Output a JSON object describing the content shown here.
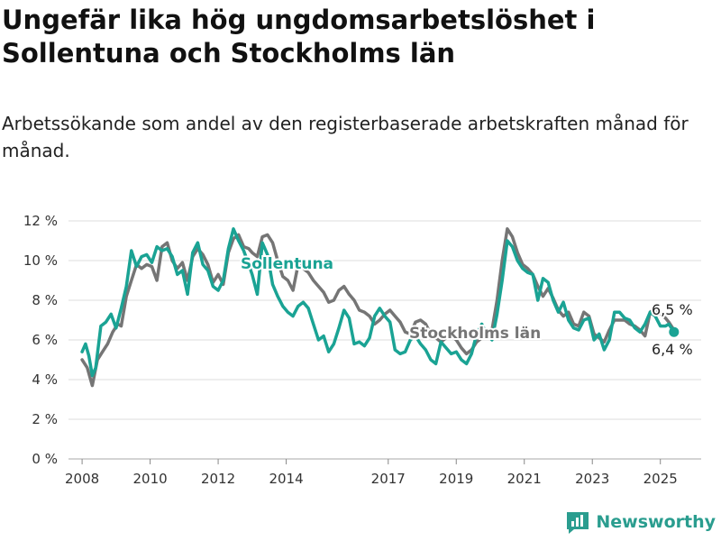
{
  "title": "Ungefär lika hög ungdomsarbetslöshet i Sollentuna och Stockholms län",
  "subtitle": "Arbetssökande som andel av den registerbaserade arbetskraften månad för månad.",
  "brand": "Newsworthy",
  "colors": {
    "sollentuna": "#1aa394",
    "stockholm": "#757575",
    "grid": "#dddddd"
  },
  "chart_data": {
    "type": "line",
    "xlim": [
      2007.6,
      2026.2
    ],
    "ylim": [
      0,
      12
    ],
    "grid": true,
    "y_ticks": [
      {
        "value": 0,
        "label": "0 %"
      },
      {
        "value": 2,
        "label": "2 %"
      },
      {
        "value": 4,
        "label": "4 %"
      },
      {
        "value": 6,
        "label": "6 %"
      },
      {
        "value": 8,
        "label": "8 %"
      },
      {
        "value": 10,
        "label": "10 %"
      },
      {
        "value": 12,
        "label": "12 %"
      }
    ],
    "x_ticks": [
      {
        "value": 2008,
        "label": "2008"
      },
      {
        "value": 2010,
        "label": "2010"
      },
      {
        "value": 2012,
        "label": "2012"
      },
      {
        "value": 2014,
        "label": "2014"
      },
      {
        "value": 2017,
        "label": "2017"
      },
      {
        "value": 2019,
        "label": "2019"
      },
      {
        "value": 2021,
        "label": "2021"
      },
      {
        "value": 2023,
        "label": "2023"
      },
      {
        "value": 2025,
        "label": "2025"
      }
    ],
    "series": [
      {
        "name": "Stockholms län",
        "key": "stockholm",
        "end_label": "6,5 %",
        "points": [
          [
            2008.0,
            5.0
          ],
          [
            2008.15,
            4.6
          ],
          [
            2008.3,
            3.7
          ],
          [
            2008.45,
            5.0
          ],
          [
            2008.6,
            5.4
          ],
          [
            2008.75,
            5.8
          ],
          [
            2008.9,
            6.4
          ],
          [
            2009.05,
            6.8
          ],
          [
            2009.15,
            6.7
          ],
          [
            2009.3,
            8.2
          ],
          [
            2009.45,
            9.0
          ],
          [
            2009.6,
            9.8
          ],
          [
            2009.75,
            9.6
          ],
          [
            2009.9,
            9.8
          ],
          [
            2010.05,
            9.7
          ],
          [
            2010.2,
            9.0
          ],
          [
            2010.35,
            10.7
          ],
          [
            2010.5,
            10.9
          ],
          [
            2010.65,
            10.0
          ],
          [
            2010.8,
            9.6
          ],
          [
            2010.95,
            9.9
          ],
          [
            2011.1,
            9.0
          ],
          [
            2011.25,
            10.2
          ],
          [
            2011.4,
            10.6
          ],
          [
            2011.55,
            10.3
          ],
          [
            2011.7,
            9.8
          ],
          [
            2011.85,
            8.9
          ],
          [
            2012.0,
            9.3
          ],
          [
            2012.15,
            8.8
          ],
          [
            2012.3,
            10.4
          ],
          [
            2012.45,
            11.1
          ],
          [
            2012.6,
            11.3
          ],
          [
            2012.75,
            10.7
          ],
          [
            2012.9,
            10.6
          ],
          [
            2013.0,
            10.4
          ],
          [
            2013.15,
            10.2
          ],
          [
            2013.3,
            11.2
          ],
          [
            2013.45,
            11.3
          ],
          [
            2013.6,
            10.9
          ],
          [
            2013.75,
            10.0
          ],
          [
            2013.9,
            9.2
          ],
          [
            2014.05,
            9.0
          ],
          [
            2014.2,
            8.5
          ],
          [
            2014.35,
            9.8
          ],
          [
            2014.5,
            9.6
          ],
          [
            2014.65,
            9.4
          ],
          [
            2014.8,
            9.0
          ],
          [
            2014.95,
            8.7
          ],
          [
            2015.1,
            8.4
          ],
          [
            2015.25,
            7.9
          ],
          [
            2015.4,
            8.0
          ],
          [
            2015.55,
            8.5
          ],
          [
            2015.7,
            8.7
          ],
          [
            2015.85,
            8.3
          ],
          [
            2016.0,
            8.0
          ],
          [
            2016.15,
            7.5
          ],
          [
            2016.3,
            7.4
          ],
          [
            2016.45,
            7.2
          ],
          [
            2016.6,
            6.8
          ],
          [
            2016.75,
            7.0
          ],
          [
            2016.9,
            7.3
          ],
          [
            2017.05,
            7.5
          ],
          [
            2017.2,
            7.2
          ],
          [
            2017.35,
            6.9
          ],
          [
            2017.5,
            6.4
          ],
          [
            2017.65,
            6.3
          ],
          [
            2017.8,
            6.9
          ],
          [
            2017.95,
            7.0
          ],
          [
            2018.1,
            6.8
          ],
          [
            2018.25,
            6.3
          ],
          [
            2018.4,
            6.1
          ],
          [
            2018.55,
            5.9
          ],
          [
            2018.7,
            6.1
          ],
          [
            2018.85,
            6.2
          ],
          [
            2019.0,
            6.0
          ],
          [
            2019.15,
            5.6
          ],
          [
            2019.3,
            5.3
          ],
          [
            2019.45,
            5.5
          ],
          [
            2019.6,
            5.9
          ],
          [
            2019.75,
            6.1
          ],
          [
            2019.9,
            6.4
          ],
          [
            2020.05,
            6.5
          ],
          [
            2020.2,
            8.0
          ],
          [
            2020.35,
            10.0
          ],
          [
            2020.5,
            11.6
          ],
          [
            2020.65,
            11.2
          ],
          [
            2020.8,
            10.4
          ],
          [
            2020.95,
            9.8
          ],
          [
            2021.1,
            9.6
          ],
          [
            2021.25,
            9.3
          ],
          [
            2021.4,
            8.7
          ],
          [
            2021.55,
            8.2
          ],
          [
            2021.7,
            8.6
          ],
          [
            2021.85,
            8.1
          ],
          [
            2022.0,
            7.5
          ],
          [
            2022.15,
            7.2
          ],
          [
            2022.3,
            7.4
          ],
          [
            2022.45,
            6.8
          ],
          [
            2022.6,
            6.7
          ],
          [
            2022.75,
            7.4
          ],
          [
            2022.9,
            7.2
          ],
          [
            2023.05,
            6.3
          ],
          [
            2023.2,
            6.1
          ],
          [
            2023.35,
            5.9
          ],
          [
            2023.5,
            6.5
          ],
          [
            2023.65,
            7.0
          ],
          [
            2023.8,
            7.0
          ],
          [
            2023.95,
            7.0
          ],
          [
            2024.1,
            6.8
          ],
          [
            2024.25,
            6.7
          ],
          [
            2024.4,
            6.5
          ],
          [
            2024.55,
            6.2
          ],
          [
            2024.7,
            7.4
          ],
          [
            2024.85,
            7.6
          ],
          [
            2025.0,
            7.3
          ],
          [
            2025.15,
            7.1
          ],
          [
            2025.25,
            6.9
          ],
          [
            2025.4,
            6.5
          ]
        ]
      },
      {
        "name": "Sollentuna",
        "key": "sollentuna",
        "end_label": "6,4 %",
        "points": [
          [
            2008.0,
            5.4
          ],
          [
            2008.1,
            5.8
          ],
          [
            2008.2,
            5.2
          ],
          [
            2008.3,
            4.2
          ],
          [
            2008.4,
            4.6
          ],
          [
            2008.55,
            6.7
          ],
          [
            2008.7,
            6.9
          ],
          [
            2008.85,
            7.3
          ],
          [
            2009.0,
            6.6
          ],
          [
            2009.15,
            7.6
          ],
          [
            2009.3,
            8.7
          ],
          [
            2009.45,
            10.5
          ],
          [
            2009.6,
            9.7
          ],
          [
            2009.75,
            10.2
          ],
          [
            2009.9,
            10.3
          ],
          [
            2010.05,
            9.9
          ],
          [
            2010.2,
            10.7
          ],
          [
            2010.35,
            10.5
          ],
          [
            2010.5,
            10.6
          ],
          [
            2010.65,
            10.2
          ],
          [
            2010.8,
            9.3
          ],
          [
            2010.95,
            9.5
          ],
          [
            2011.1,
            8.3
          ],
          [
            2011.25,
            10.4
          ],
          [
            2011.4,
            10.9
          ],
          [
            2011.55,
            9.8
          ],
          [
            2011.7,
            9.5
          ],
          [
            2011.85,
            8.7
          ],
          [
            2012.0,
            8.5
          ],
          [
            2012.15,
            9.0
          ],
          [
            2012.3,
            10.6
          ],
          [
            2012.45,
            11.6
          ],
          [
            2012.6,
            11.0
          ],
          [
            2012.75,
            10.5
          ],
          [
            2012.9,
            9.8
          ],
          [
            2013.0,
            9.3
          ],
          [
            2013.15,
            8.3
          ],
          [
            2013.3,
            10.9
          ],
          [
            2013.45,
            10.3
          ],
          [
            2013.6,
            8.8
          ],
          [
            2013.75,
            8.2
          ],
          [
            2013.9,
            7.7
          ],
          [
            2014.05,
            7.4
          ],
          [
            2014.2,
            7.2
          ],
          [
            2014.35,
            7.7
          ],
          [
            2014.5,
            7.9
          ],
          [
            2014.65,
            7.6
          ],
          [
            2014.8,
            6.8
          ],
          [
            2014.95,
            6.0
          ],
          [
            2015.1,
            6.2
          ],
          [
            2015.25,
            5.4
          ],
          [
            2015.4,
            5.8
          ],
          [
            2015.55,
            6.6
          ],
          [
            2015.7,
            7.5
          ],
          [
            2015.85,
            7.1
          ],
          [
            2016.0,
            5.8
          ],
          [
            2016.15,
            5.9
          ],
          [
            2016.3,
            5.7
          ],
          [
            2016.45,
            6.1
          ],
          [
            2016.6,
            7.2
          ],
          [
            2016.75,
            7.6
          ],
          [
            2016.9,
            7.2
          ],
          [
            2017.05,
            6.9
          ],
          [
            2017.2,
            5.5
          ],
          [
            2017.35,
            5.3
          ],
          [
            2017.5,
            5.4
          ],
          [
            2017.65,
            6.0
          ],
          [
            2017.8,
            6.2
          ],
          [
            2017.95,
            5.8
          ],
          [
            2018.1,
            5.5
          ],
          [
            2018.25,
            5.0
          ],
          [
            2018.4,
            4.8
          ],
          [
            2018.55,
            5.9
          ],
          [
            2018.7,
            5.6
          ],
          [
            2018.85,
            5.3
          ],
          [
            2019.0,
            5.4
          ],
          [
            2019.15,
            5.0
          ],
          [
            2019.3,
            4.8
          ],
          [
            2019.45,
            5.3
          ],
          [
            2019.6,
            6.3
          ],
          [
            2019.75,
            6.8
          ],
          [
            2019.9,
            6.3
          ],
          [
            2020.05,
            6.0
          ],
          [
            2020.2,
            7.3
          ],
          [
            2020.35,
            9.0
          ],
          [
            2020.5,
            11.0
          ],
          [
            2020.65,
            10.7
          ],
          [
            2020.8,
            10.0
          ],
          [
            2020.95,
            9.6
          ],
          [
            2021.1,
            9.4
          ],
          [
            2021.25,
            9.3
          ],
          [
            2021.4,
            8.0
          ],
          [
            2021.55,
            9.1
          ],
          [
            2021.7,
            8.9
          ],
          [
            2021.85,
            8.0
          ],
          [
            2022.0,
            7.4
          ],
          [
            2022.15,
            7.9
          ],
          [
            2022.3,
            7.0
          ],
          [
            2022.45,
            6.6
          ],
          [
            2022.6,
            6.5
          ],
          [
            2022.75,
            7.0
          ],
          [
            2022.9,
            7.1
          ],
          [
            2023.05,
            6.0
          ],
          [
            2023.2,
            6.3
          ],
          [
            2023.35,
            5.5
          ],
          [
            2023.5,
            6.0
          ],
          [
            2023.65,
            7.4
          ],
          [
            2023.8,
            7.4
          ],
          [
            2023.95,
            7.1
          ],
          [
            2024.1,
            7.0
          ],
          [
            2024.25,
            6.6
          ],
          [
            2024.4,
            6.4
          ],
          [
            2024.55,
            6.8
          ],
          [
            2024.7,
            7.4
          ],
          [
            2024.85,
            7.2
          ],
          [
            2025.0,
            6.7
          ],
          [
            2025.15,
            6.7
          ],
          [
            2025.25,
            6.8
          ],
          [
            2025.4,
            6.4
          ]
        ]
      }
    ]
  }
}
